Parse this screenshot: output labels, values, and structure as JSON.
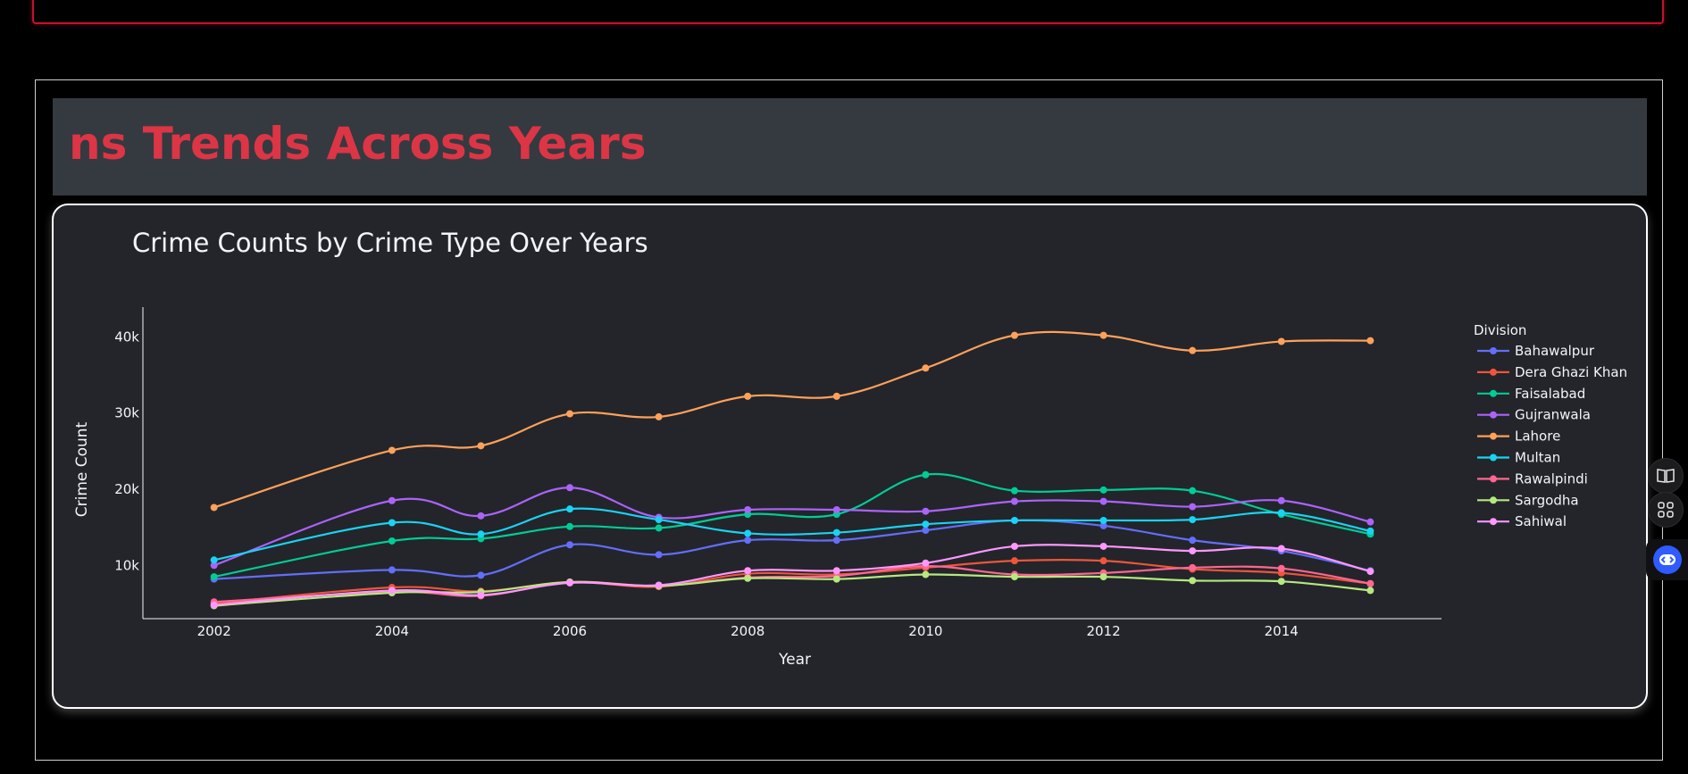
{
  "page": {
    "section_heading": "ns Trends Across Years"
  },
  "side_toolbar": {
    "icons": [
      "book-icon",
      "apps-grid-icon",
      "assistant-icon"
    ]
  },
  "chart_data": {
    "type": "line",
    "title": "Crime Counts by Crime Type Over Years",
    "xlabel": "Year",
    "ylabel": "Crime Count",
    "legend_title": "Division",
    "legend_position": "right",
    "grid": false,
    "xlim": [
      2001.2,
      2015.8
    ],
    "ylim": [
      3000,
      42500
    ],
    "x_ticks": [
      2002,
      2004,
      2006,
      2008,
      2010,
      2012,
      2014
    ],
    "y_ticks": [
      10000,
      20000,
      30000,
      40000
    ],
    "y_tick_labels": [
      "10k",
      "20k",
      "30k",
      "40k"
    ],
    "x": [
      2002,
      2004,
      2005,
      2006,
      2007,
      2008,
      2009,
      2010,
      2011,
      2012,
      2013,
      2014,
      2015
    ],
    "series": [
      {
        "name": "Bahawalpur",
        "color": "#636efa",
        "values": [
          8200,
          9400,
          8700,
          12700,
          11400,
          13300,
          13300,
          14600,
          15900,
          15200,
          13300,
          11900,
          9300
        ]
      },
      {
        "name": "Dera Ghazi Khan",
        "color": "#ef553b",
        "values": [
          5000,
          7100,
          6600,
          7800,
          7200,
          8900,
          8800,
          9700,
          10600,
          10600,
          9500,
          9000,
          7600
        ]
      },
      {
        "name": "Faisalabad",
        "color": "#00cc96",
        "values": [
          8500,
          13200,
          13500,
          15100,
          14900,
          16700,
          16700,
          21900,
          19800,
          19900,
          19800,
          16700,
          14100
        ]
      },
      {
        "name": "Gujranwala",
        "color": "#ab63fa",
        "values": [
          10000,
          18500,
          16500,
          20200,
          16300,
          17300,
          17300,
          17100,
          18400,
          18400,
          17700,
          18500,
          15700
        ]
      },
      {
        "name": "Lahore",
        "color": "#ffa15a",
        "values": [
          17600,
          25100,
          25700,
          29900,
          29500,
          32200,
          32200,
          35900,
          40200,
          40200,
          38200,
          39400,
          39500
        ]
      },
      {
        "name": "Multan",
        "color": "#19d3f3",
        "values": [
          10700,
          15600,
          14100,
          17400,
          16000,
          14200,
          14300,
          15400,
          15900,
          15900,
          16000,
          16900,
          14500
        ]
      },
      {
        "name": "Rawalpindi",
        "color": "#ff6692",
        "values": [
          5200,
          6500,
          6000,
          7800,
          7300,
          8400,
          8600,
          9900,
          8800,
          9000,
          9700,
          9600,
          7600
        ]
      },
      {
        "name": "Sargodha",
        "color": "#b6e880",
        "values": [
          4700,
          6400,
          6500,
          7800,
          7300,
          8300,
          8200,
          8800,
          8500,
          8500,
          8000,
          7900,
          6700
        ]
      },
      {
        "name": "Sahiwal",
        "color": "#ff97ff",
        "values": [
          4800,
          6700,
          6100,
          7700,
          7400,
          9300,
          9300,
          10300,
          12500,
          12500,
          11900,
          12200,
          9200
        ]
      }
    ]
  }
}
